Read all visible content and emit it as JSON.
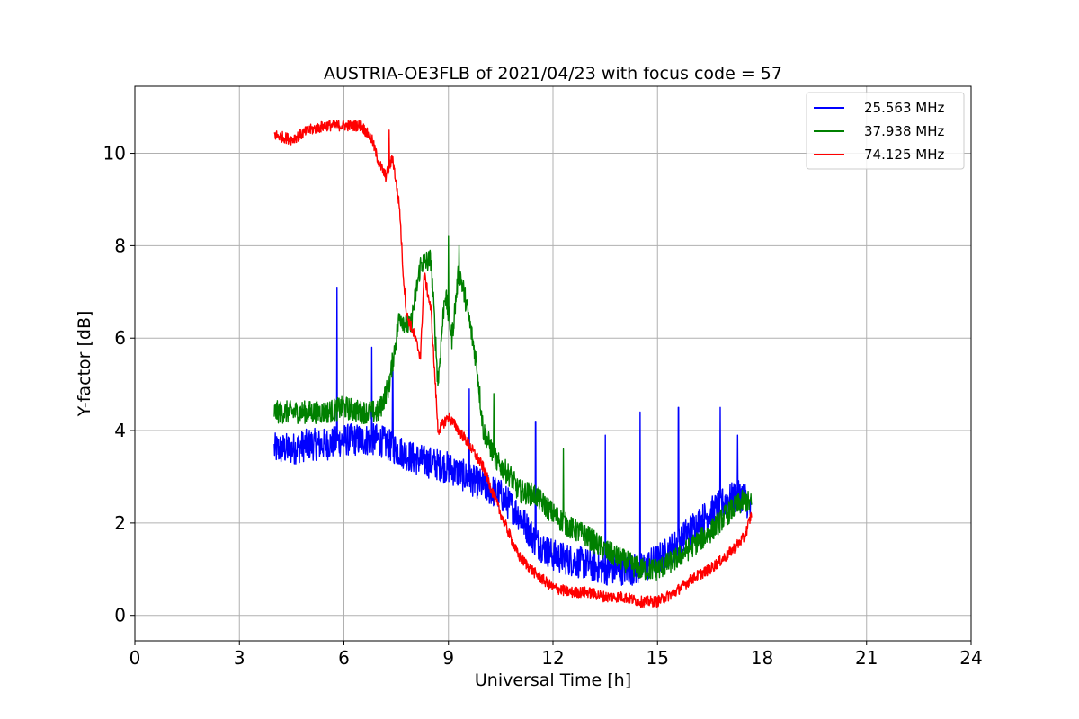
{
  "chart_data": {
    "type": "line",
    "title": "AUSTRIA-OE3FLB of 2021/04/23 with focus code = 57",
    "xlabel": "Universal Time [h]",
    "ylabel": "Y-factor [dB]",
    "xlim": [
      0,
      24
    ],
    "ylim": [
      -0.55,
      11.45
    ],
    "xticks": [
      0,
      3,
      6,
      9,
      12,
      15,
      18,
      21,
      24
    ],
    "yticks": [
      0,
      2,
      4,
      6,
      8,
      10
    ],
    "grid": true,
    "legend_position": "upper right",
    "series": [
      {
        "name": "25.563 MHz",
        "color": "#0000ff",
        "x": [
          4.0,
          4.5,
          5.0,
          5.5,
          6.0,
          6.5,
          7.0,
          7.5,
          8.0,
          8.5,
          9.0,
          9.5,
          10.0,
          10.5,
          11.0,
          11.5,
          12.0,
          12.5,
          13.0,
          13.5,
          14.0,
          14.5,
          15.0,
          15.5,
          16.0,
          16.5,
          17.0,
          17.5,
          17.7
        ],
        "y": [
          3.6,
          3.6,
          3.7,
          3.7,
          3.8,
          3.8,
          3.8,
          3.6,
          3.4,
          3.3,
          3.2,
          3.0,
          2.8,
          2.6,
          2.2,
          1.6,
          1.3,
          1.2,
          1.1,
          1.0,
          1.0,
          1.0,
          1.2,
          1.5,
          1.9,
          2.2,
          2.5,
          2.6,
          2.2
        ],
        "noise": 0.35,
        "spikes": [
          [
            5.8,
            7.1
          ],
          [
            6.8,
            5.8
          ],
          [
            7.4,
            5.3
          ],
          [
            9.6,
            4.9
          ],
          [
            11.5,
            4.2
          ],
          [
            13.5,
            3.9
          ],
          [
            14.5,
            4.4
          ],
          [
            15.6,
            4.5
          ],
          [
            16.8,
            4.5
          ],
          [
            17.3,
            3.9
          ]
        ]
      },
      {
        "name": "37.938 MHz",
        "color": "#008000",
        "x": [
          4.0,
          4.5,
          5.0,
          5.5,
          6.0,
          6.5,
          7.0,
          7.3,
          7.6,
          7.9,
          8.2,
          8.5,
          8.7,
          8.9,
          9.1,
          9.3,
          9.5,
          9.8,
          10.0,
          10.4,
          10.8,
          11.0,
          11.5,
          12.0,
          12.5,
          13.0,
          13.5,
          14.0,
          14.5,
          15.0,
          15.5,
          16.0,
          16.5,
          17.0,
          17.5,
          17.7
        ],
        "y": [
          4.4,
          4.4,
          4.4,
          4.4,
          4.5,
          4.4,
          4.4,
          5.0,
          6.5,
          6.2,
          7.6,
          7.7,
          5.0,
          7.0,
          6.0,
          7.5,
          6.8,
          5.5,
          4.0,
          3.3,
          3.0,
          2.7,
          2.6,
          2.2,
          1.9,
          1.7,
          1.4,
          1.2,
          1.0,
          1.0,
          1.2,
          1.5,
          1.8,
          2.2,
          2.5,
          2.4
        ],
        "noise": 0.25,
        "spikes": [
          [
            9.0,
            8.2
          ],
          [
            9.3,
            8.0
          ],
          [
            10.3,
            4.8
          ],
          [
            12.3,
            3.6
          ]
        ]
      },
      {
        "name": "74.125 MHz",
        "color": "#ff0000",
        "x": [
          4.0,
          4.5,
          5.0,
          5.5,
          6.0,
          6.5,
          6.8,
          7.0,
          7.2,
          7.4,
          7.6,
          7.7,
          7.8,
          8.0,
          8.2,
          8.3,
          8.5,
          8.7,
          9.0,
          9.5,
          10.0,
          10.5,
          11.0,
          11.5,
          12.0,
          12.5,
          13.0,
          13.5,
          14.0,
          14.5,
          15.0,
          15.5,
          16.0,
          16.5,
          17.0,
          17.5,
          17.7
        ],
        "y": [
          10.4,
          10.3,
          10.5,
          10.6,
          10.6,
          10.6,
          10.3,
          9.8,
          9.5,
          9.9,
          8.8,
          7.4,
          6.5,
          6.1,
          5.6,
          7.4,
          6.6,
          4.0,
          4.3,
          3.8,
          3.2,
          2.2,
          1.3,
          0.9,
          0.6,
          0.5,
          0.5,
          0.4,
          0.4,
          0.3,
          0.3,
          0.5,
          0.8,
          1.0,
          1.3,
          1.7,
          2.2
        ],
        "noise": 0.12,
        "spikes": [
          [
            7.3,
            10.5
          ]
        ]
      }
    ]
  }
}
